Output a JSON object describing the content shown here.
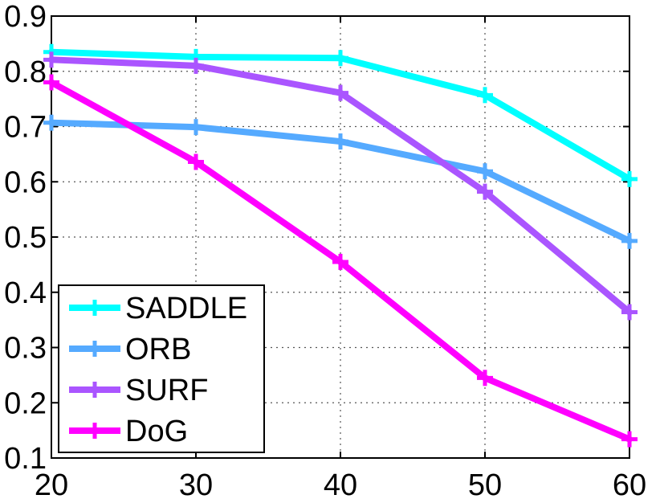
{
  "chart_data": {
    "type": "line",
    "title": "",
    "xlabel": "",
    "ylabel": "",
    "x": [
      20,
      30,
      40,
      50,
      60
    ],
    "xlim": [
      20,
      60
    ],
    "ylim": [
      0.1,
      0.9
    ],
    "xticks": [
      "20",
      "30",
      "40",
      "50",
      "60"
    ],
    "yticks": [
      "0.1",
      "0.2",
      "0.3",
      "0.4",
      "0.5",
      "0.6",
      "0.7",
      "0.8",
      "0.9"
    ],
    "grid": true,
    "legend_position": "bottom-left",
    "series": [
      {
        "name": "SADDLE",
        "color": "#00ffff",
        "values": [
          0.835,
          0.826,
          0.824,
          0.757,
          0.605
        ]
      },
      {
        "name": "ORB",
        "color": "#55aaff",
        "values": [
          0.707,
          0.699,
          0.673,
          0.619,
          0.493
        ]
      },
      {
        "name": "SURF",
        "color": "#aa55ff",
        "values": [
          0.821,
          0.81,
          0.761,
          0.582,
          0.364
        ]
      },
      {
        "name": "DoG",
        "color": "#ff00ff",
        "values": [
          0.78,
          0.636,
          0.455,
          0.245,
          0.134
        ]
      }
    ]
  }
}
